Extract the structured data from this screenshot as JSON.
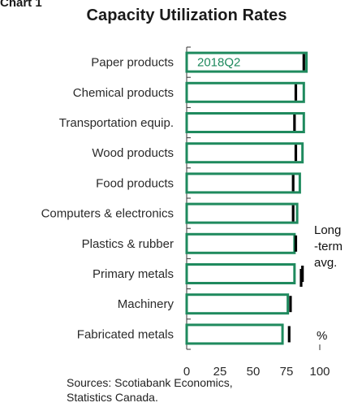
{
  "chart_label": "Chart 1",
  "chart_data": {
    "type": "bar",
    "orientation": "horizontal",
    "title": "Capacity Utilization Rates",
    "categories": [
      "Paper products",
      "Chemical products",
      "Transportation equip.",
      "Wood products",
      "Food products",
      "Computers & electronics",
      "Plastics & rubber",
      "Primary metals",
      "Machinery",
      "Fabricated metals"
    ],
    "series": [
      {
        "name": "2018Q2",
        "values": [
          90,
          88,
          88,
          87,
          85,
          83,
          81,
          81,
          76,
          72
        ],
        "color": "#1f8a5e"
      },
      {
        "name": "Long-term avg.",
        "values": [
          88,
          82,
          81,
          82,
          80,
          80,
          82,
          87,
          78,
          77
        ],
        "color": "#000000"
      }
    ],
    "xlim": [
      0,
      100
    ],
    "xticks": [
      0,
      25,
      50,
      75,
      100
    ],
    "unit": "%",
    "legend_label_bar": "2018Q2",
    "legend_label_marker": [
      "Long",
      "-term",
      "avg."
    ]
  },
  "source_lines": [
    "Sources: Scotiabank Economics,",
    "Statistics Canada."
  ]
}
